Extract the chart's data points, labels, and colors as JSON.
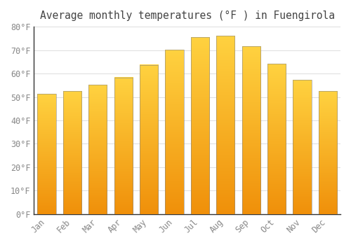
{
  "title": "Average monthly temperatures (°F ) in Fuengirola",
  "months": [
    "Jan",
    "Feb",
    "Mar",
    "Apr",
    "May",
    "Jun",
    "Jul",
    "Aug",
    "Sep",
    "Oct",
    "Nov",
    "Dec"
  ],
  "values": [
    51.3,
    52.5,
    55.2,
    58.3,
    63.7,
    70.2,
    75.6,
    76.1,
    71.7,
    64.2,
    57.2,
    52.5
  ],
  "bar_color_top": "#FFD040",
  "bar_color_bottom": "#F0900A",
  "bar_edge_color": "#888888",
  "background_color": "#FFFFFF",
  "plot_bg_color": "#FFFFFF",
  "grid_color": "#DDDDDD",
  "text_color": "#888888",
  "spine_color": "#333333",
  "ylim": [
    0,
    80
  ],
  "yticks": [
    0,
    10,
    20,
    30,
    40,
    50,
    60,
    70,
    80
  ],
  "title_fontsize": 10.5,
  "tick_fontsize": 8.5,
  "font_family": "monospace"
}
